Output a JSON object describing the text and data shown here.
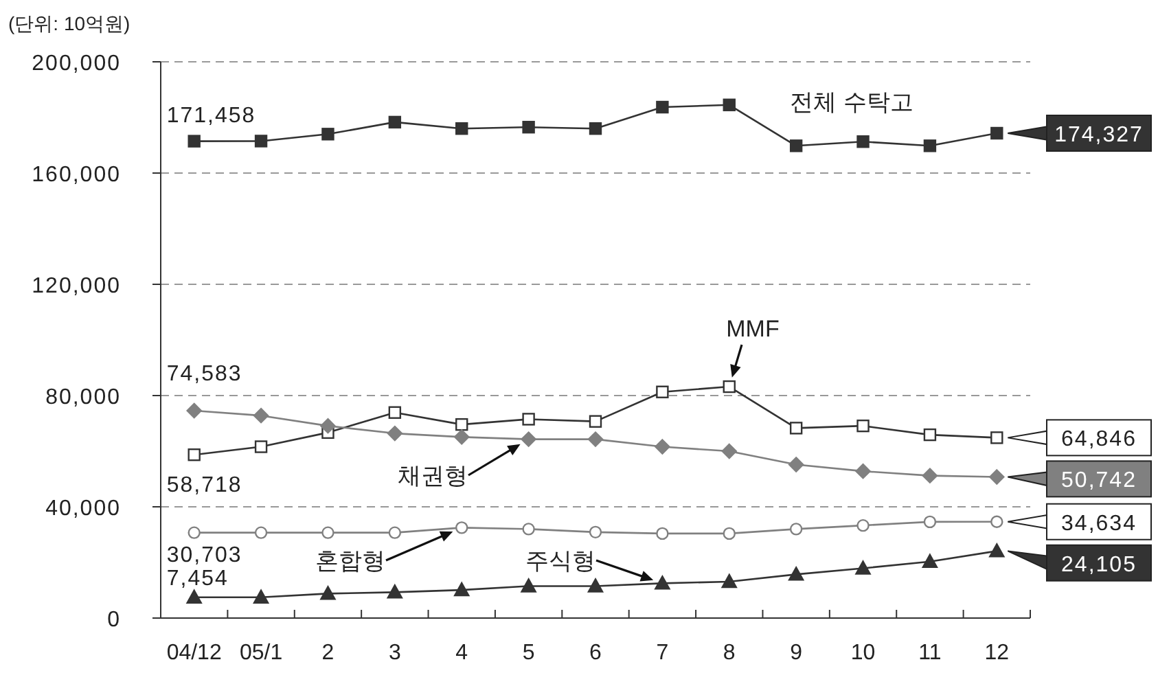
{
  "chart_data": {
    "type": "line",
    "annotations": [
      "(단위: 10억원)"
    ],
    "categories": [
      "04/12",
      "05/1",
      "2",
      "3",
      "4",
      "5",
      "6",
      "7",
      "8",
      "9",
      "10",
      "11",
      "12"
    ],
    "ylim": [
      0,
      200000
    ],
    "yticks": [
      0,
      {
        "value": 40000,
        "label": "40,000"
      },
      {
        "value": 80000,
        "label": "80,000"
      },
      {
        "value": 120000,
        "label": "120,000"
      },
      {
        "value": 160000,
        "label": "160,000"
      },
      {
        "value": 200000,
        "label": "200,000"
      }
    ],
    "grid": "y",
    "line_style": "solid",
    "series": [
      {
        "name": "전체 수탁고",
        "color": "#333333",
        "marker": "square",
        "values": [
          171458,
          171500,
          174000,
          178300,
          176000,
          176500,
          176000,
          183700,
          184500,
          169800,
          171300,
          169800,
          174327
        ],
        "value_labels": [
          "171,458",
          null,
          null,
          null,
          null,
          null,
          null,
          null,
          null,
          null,
          null,
          null,
          "174,327"
        ]
      },
      {
        "name": "MMF",
        "color": "#333333",
        "marker": "square",
        "values": [
          58718,
          61600,
          66700,
          73900,
          69600,
          71500,
          70700,
          81300,
          83200,
          68300,
          69100,
          65900,
          64846
        ],
        "value_labels": [
          "58,718",
          null,
          null,
          null,
          null,
          null,
          null,
          null,
          null,
          null,
          null,
          null,
          "64,846"
        ]
      },
      {
        "name": "채권형",
        "color": "#808080",
        "marker": "diamond",
        "values": [
          74583,
          72800,
          69100,
          66400,
          65100,
          64300,
          64300,
          61600,
          60000,
          55200,
          52800,
          51200,
          50742
        ],
        "value_labels": [
          "74,583",
          null,
          null,
          null,
          null,
          null,
          null,
          null,
          null,
          null,
          null,
          null,
          "50,742"
        ]
      },
      {
        "name": "혼합형",
        "color": "#808080",
        "marker": "circle",
        "values": [
          30703,
          30703,
          30703,
          30703,
          32500,
          32000,
          30900,
          30400,
          30400,
          32000,
          33300,
          34600,
          34634
        ],
        "value_labels": [
          "30,703",
          null,
          null,
          null,
          null,
          null,
          null,
          null,
          null,
          null,
          null,
          null,
          "34,634"
        ]
      },
      {
        "name": "주식형",
        "color": "#333333",
        "marker": "triangle",
        "values": [
          7454,
          7454,
          8800,
          9300,
          10100,
          11500,
          11500,
          12500,
          13100,
          15700,
          17900,
          20300,
          24105
        ],
        "value_labels": [
          "7,454",
          null,
          null,
          null,
          null,
          null,
          null,
          null,
          null,
          null,
          null,
          null,
          "24,105"
        ]
      }
    ]
  }
}
